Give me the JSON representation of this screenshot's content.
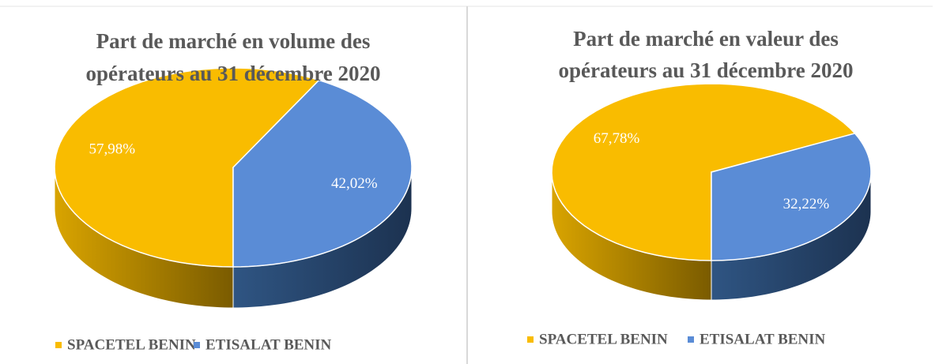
{
  "chart_data": [
    {
      "type": "pie",
      "title": [
        "Part de marché en  volume des",
        "opérateurs au 31 décembre 2020"
      ],
      "categories": [
        "SPACETEL BENIN",
        "ETISALAT BENIN"
      ],
      "values": [
        57.98,
        42.02
      ],
      "value_labels": [
        "57,98%",
        "42,02%"
      ],
      "colors": [
        "#F9BC00",
        "#5A8CD6"
      ],
      "legend": "bottom"
    },
    {
      "type": "pie",
      "title": [
        "Part de marché en valeur des",
        "opérateurs au 31 décembre 2020"
      ],
      "categories": [
        "SPACETEL BENIN",
        "ETISALAT BENIN"
      ],
      "values": [
        67.78,
        32.22
      ],
      "value_labels": [
        "67,78%",
        "32,22%"
      ],
      "colors": [
        "#F9BC00",
        "#5A8CD6"
      ],
      "legend": "bottom"
    }
  ]
}
